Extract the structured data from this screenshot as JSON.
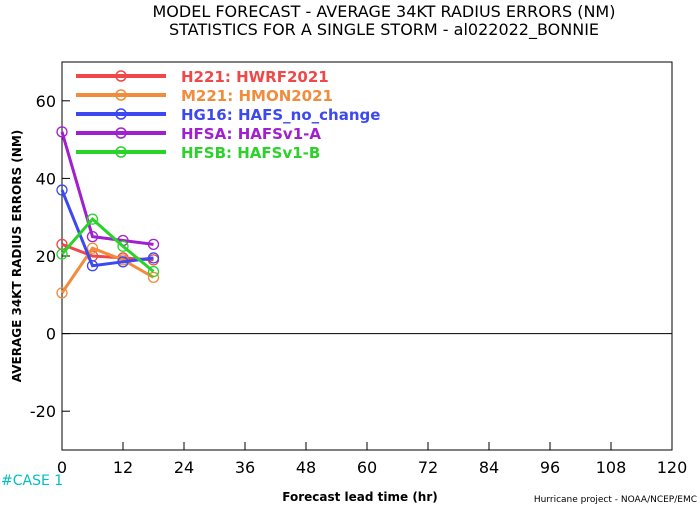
{
  "chart_data": {
    "type": "line",
    "title": [
      "MODEL FORECAST - AVERAGE 34KT RADIUS ERRORS (NM)",
      "STATISTICS FOR A SINGLE STORM - al022022_BONNIE"
    ],
    "xlabel": "Forecast lead time (hr)",
    "ylabel": "AVERAGE 34KT RADIUS ERRORS (NM)",
    "xlim": [
      0,
      120
    ],
    "ylim": [
      -30,
      70
    ],
    "x_ticks": [
      "0",
      "12",
      "24",
      "36",
      "48",
      "60",
      "72",
      "84",
      "96",
      "108",
      "120"
    ],
    "y_ticks": [
      "-20",
      "0",
      "20",
      "40",
      "60"
    ],
    "zero_line": true,
    "grid": false,
    "legend_position": "top-left",
    "x": [
      0,
      6,
      12,
      18
    ],
    "series": [
      {
        "name": "H221: HWRF2021",
        "color": "#f04848",
        "values": [
          23,
          20,
          19.5,
          19
        ]
      },
      {
        "name": "M221: HMON2021",
        "color": "#f08c3c",
        "values": [
          10.5,
          22,
          19,
          14.5
        ]
      },
      {
        "name": "HG16: HAFS_no_change",
        "color": "#3c48f0",
        "values": [
          37,
          17.5,
          18.5,
          19.5
        ]
      },
      {
        "name": "HFSA: HAFSv1-A",
        "color": "#a020d0",
        "values": [
          52,
          25,
          24,
          23
        ]
      },
      {
        "name": "HFSB: HAFSv1-B",
        "color": "#2ad22a",
        "values": [
          20.5,
          29.5,
          22.5,
          16
        ]
      }
    ],
    "case_label": "#CASE  1",
    "footer": "Hurricane project - NOAA/NCEP/EMC"
  }
}
